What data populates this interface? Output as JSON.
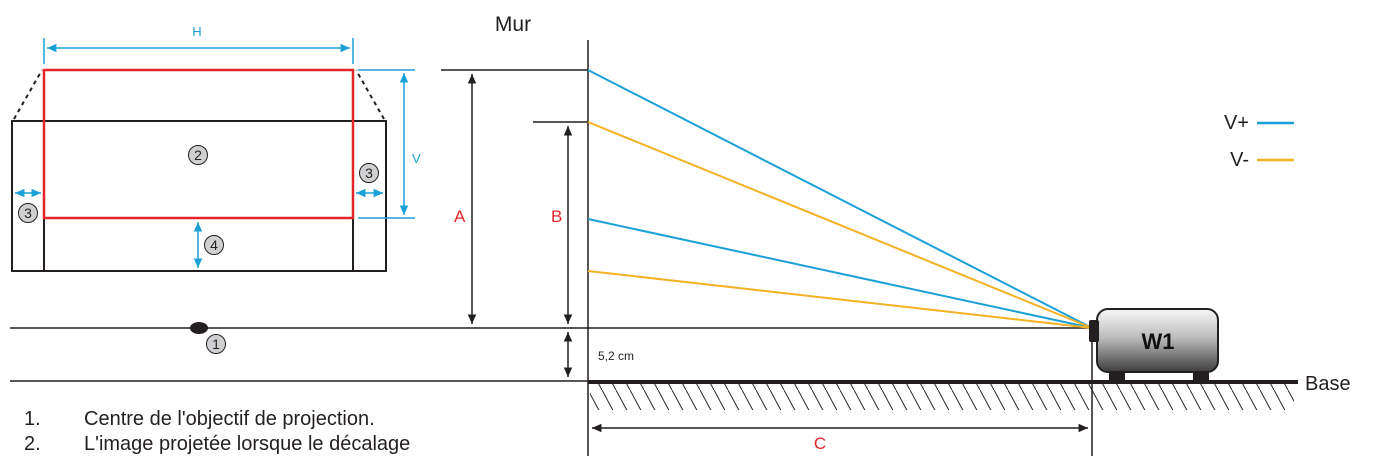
{
  "labels": {
    "h": "H",
    "v": "V",
    "a": "A",
    "b": "B",
    "c": "C",
    "mur": "Mur",
    "base": "Base",
    "offset": "5,2 cm",
    "projector": "W1"
  },
  "legend": [
    {
      "label": "V+",
      "color": "#1ba1d8"
    },
    {
      "label": "V-",
      "color": "#f4b124"
    }
  ],
  "callouts": {
    "one": "1",
    "two": "2",
    "three": "3",
    "four": "4"
  },
  "notes": [
    {
      "num": "1.",
      "text": "Centre de l'objectif de projection."
    },
    {
      "num": "2.",
      "text": "L'image projetée lorsque le décalage"
    }
  ],
  "colors": {
    "blue": "#1ba1d8",
    "orange": "#f4b124",
    "red": "#e3262b",
    "line": "#231f20"
  }
}
